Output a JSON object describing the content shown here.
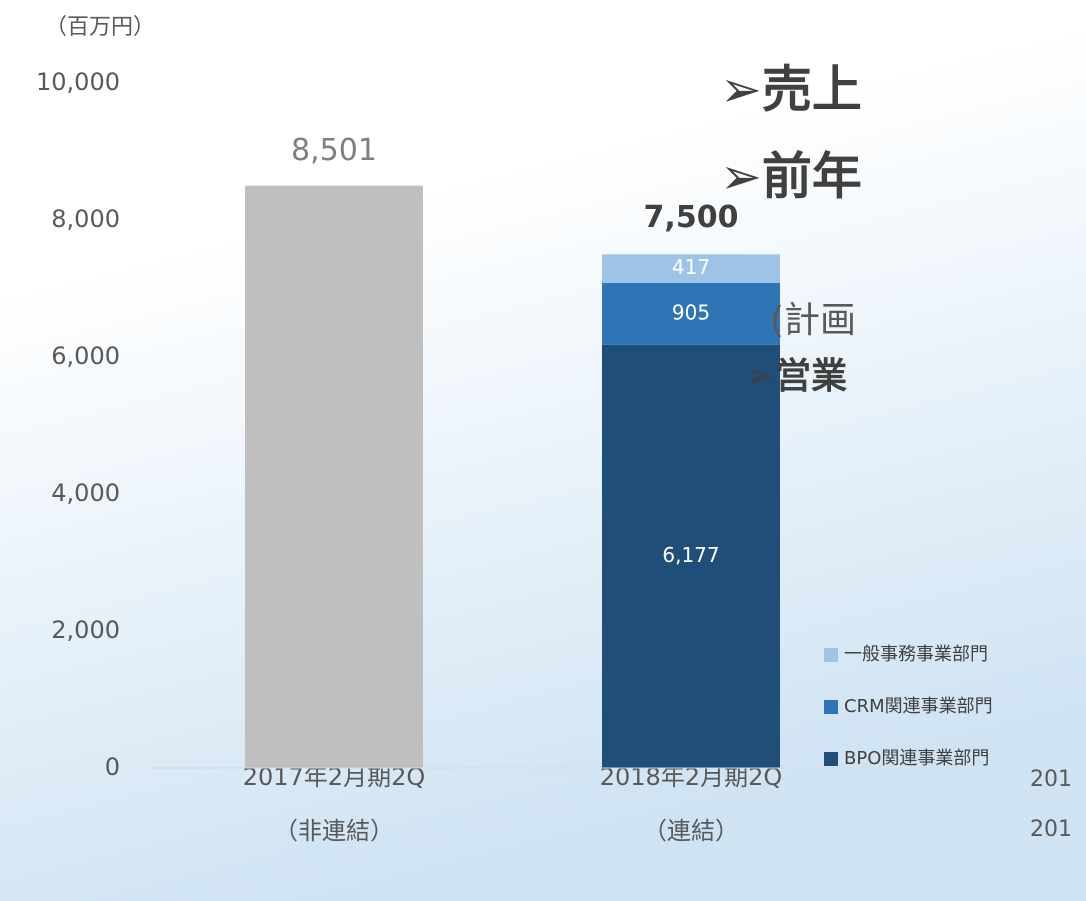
{
  "chart_data": {
    "type": "stacked_bar",
    "unit_label": "（百万円）",
    "categories": [
      "2017年2月期2Q",
      "2018年2月期2Q"
    ],
    "category_notes": [
      "（非連結）",
      "（連結）"
    ],
    "single_bar": {
      "color": "#bfbfbf",
      "values": [
        8501,
        null
      ],
      "value_labels": [
        "8,501",
        null
      ]
    },
    "series": [
      {
        "name": "BPO関連事業部門",
        "color": "#1f4e79",
        "values": [
          null,
          6177
        ],
        "value_labels": [
          null,
          "6,177"
        ]
      },
      {
        "name": "CRM関連事業部門",
        "color": "#2e75b6",
        "values": [
          null,
          905
        ],
        "value_labels": [
          null,
          "905"
        ]
      },
      {
        "name": "一般事務事業部門",
        "color": "#9dc3e6",
        "values": [
          null,
          417
        ],
        "value_labels": [
          null,
          "417"
        ]
      }
    ],
    "totals": [
      null,
      7500
    ],
    "total_labels": [
      null,
      "7,500"
    ],
    "ylim": [
      0,
      10000
    ],
    "yticks": [
      0,
      {
        "value": 2000,
        "label": "2,000"
      },
      {
        "value": 4000,
        "label": "4,000"
      },
      {
        "value": 6000,
        "label": "6,000"
      },
      {
        "value": 8000,
        "label": "8,000"
      },
      {
        "value": 10000,
        "label": "10,000"
      }
    ],
    "legend": "right",
    "annotations": [
      "➢売上",
      "➢前年",
      "(計画",
      "➢営業",
      "201",
      "201"
    ]
  }
}
